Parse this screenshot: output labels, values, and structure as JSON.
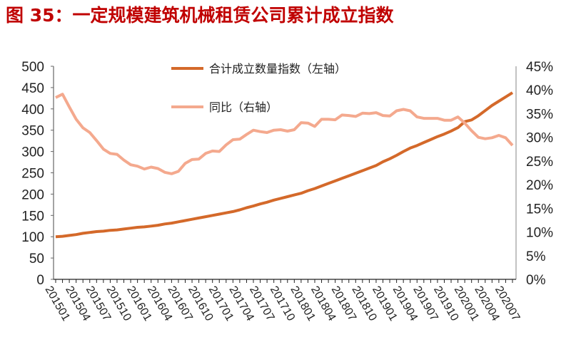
{
  "chart_data": {
    "type": "line",
    "title": "图 35：一定规模建筑机械租赁公司累计成立指数",
    "x_tick_labels": [
      "201501",
      "201504",
      "201507",
      "201510",
      "201601",
      "201604",
      "201607",
      "201610",
      "201701",
      "201704",
      "201707",
      "201710",
      "201801",
      "201804",
      "201807",
      "201810",
      "201901",
      "201904",
      "201907",
      "201910",
      "202001",
      "202004",
      "202007"
    ],
    "x_start": "201501",
    "x_end": "202008",
    "y_left": {
      "ylim": [
        0,
        500
      ],
      "ticks": [
        0,
        50,
        100,
        150,
        200,
        250,
        300,
        350,
        400,
        450,
        500
      ]
    },
    "y_right": {
      "ylim": [
        0,
        45
      ],
      "ticks": [
        "0%",
        "5%",
        "10%",
        "15%",
        "20%",
        "25%",
        "30%",
        "35%",
        "40%",
        "45%"
      ]
    },
    "grid": false,
    "legend_placement": "top-center",
    "series": [
      {
        "name": "合计成立数量指数（左轴）",
        "axis": "left",
        "color": "#d4692a",
        "values": [
          100,
          101,
          103,
          105,
          108,
          110,
          112,
          113,
          115,
          116,
          118,
          120,
          122,
          123,
          125,
          127,
          130,
          132,
          135,
          138,
          141,
          144,
          147,
          150,
          153,
          156,
          159,
          163,
          168,
          172,
          177,
          181,
          186,
          190,
          194,
          198,
          202,
          208,
          213,
          219,
          225,
          231,
          237,
          243,
          249,
          255,
          261,
          267,
          276,
          283,
          291,
          300,
          308,
          314,
          321,
          328,
          335,
          341,
          348,
          356,
          370,
          374,
          384,
          396,
          408,
          418,
          428,
          438
        ]
      },
      {
        "name": "同比（右轴）",
        "axis": "right",
        "unit": "%",
        "color": "#f4a98e",
        "values": [
          38.4,
          39.1,
          36.4,
          33.8,
          32.0,
          31.0,
          29.3,
          27.5,
          26.6,
          26.4,
          25.2,
          24.2,
          23.9,
          23.3,
          23.7,
          23.4,
          22.6,
          22.3,
          22.8,
          24.5,
          25.3,
          25.4,
          26.6,
          27.1,
          27.0,
          28.4,
          29.5,
          29.6,
          30.6,
          31.5,
          31.2,
          31.0,
          31.5,
          31.6,
          31.3,
          31.6,
          33.1,
          33.0,
          32.3,
          33.8,
          33.8,
          33.7,
          34.7,
          34.6,
          34.4,
          35.1,
          35.0,
          35.2,
          34.6,
          34.5,
          35.6,
          35.9,
          35.6,
          34.3,
          34.0,
          34.0,
          34.0,
          33.6,
          33.6,
          34.3,
          33.0,
          31.4,
          30.0,
          29.7,
          29.9,
          30.4,
          29.9,
          28.3
        ]
      }
    ]
  }
}
